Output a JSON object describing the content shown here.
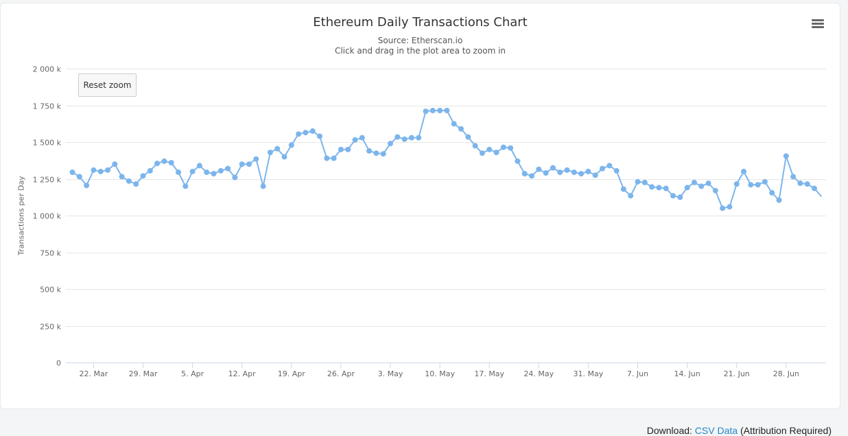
{
  "chart_data": {
    "type": "line",
    "title": "Ethereum Daily Transactions Chart",
    "subtitle": [
      "Source: Etherscan.io",
      "Click and drag in the plot area to zoom in"
    ],
    "ylabel": "Transactions per Day",
    "xlabel": "",
    "ylim": [
      0,
      2000000
    ],
    "yticks": [
      0,
      250000,
      500000,
      750000,
      1000000,
      1250000,
      1500000,
      1750000,
      2000000
    ],
    "ytick_labels": [
      "0",
      "250 k",
      "500 k",
      "750 k",
      "1 000 k",
      "1 250 k",
      "1 500 k",
      "1 750 k",
      "2 000 k"
    ],
    "x_start": "2020-03-19",
    "xtick_labels": [
      "22. Mar",
      "29. Mar",
      "5. Apr",
      "12. Apr",
      "19. Apr",
      "26. Apr",
      "3. May",
      "10. May",
      "17. May",
      "24. May",
      "31. May",
      "7. Jun",
      "14. Jun",
      "21. Jun",
      "28. Jun"
    ],
    "color": "#7cb5ec",
    "grid": true,
    "legend": false,
    "series": [
      {
        "values": [
          1295000,
          1265000,
          1205000,
          1310000,
          1300000,
          1310000,
          1350000,
          1265000,
          1235000,
          1215000,
          1270000,
          1305000,
          1355000,
          1370000,
          1360000,
          1295000,
          1200000,
          1300000,
          1340000,
          1295000,
          1285000,
          1305000,
          1320000,
          1260000,
          1350000,
          1350000,
          1385000,
          1200000,
          1430000,
          1455000,
          1400000,
          1480000,
          1555000,
          1565000,
          1575000,
          1540000,
          1390000,
          1390000,
          1450000,
          1450000,
          1515000,
          1530000,
          1440000,
          1425000,
          1420000,
          1490000,
          1535000,
          1520000,
          1530000,
          1530000,
          1710000,
          1715000,
          1715000,
          1715000,
          1625000,
          1590000,
          1535000,
          1475000,
          1425000,
          1450000,
          1430000,
          1465000,
          1460000,
          1370000,
          1285000,
          1270000,
          1315000,
          1290000,
          1325000,
          1295000,
          1310000,
          1295000,
          1285000,
          1300000,
          1275000,
          1320000,
          1340000,
          1305000,
          1180000,
          1135000,
          1230000,
          1225000,
          1195000,
          1190000,
          1185000,
          1135000,
          1125000,
          1190000,
          1225000,
          1200000,
          1220000,
          1170000,
          1050000,
          1060000,
          1215000,
          1300000,
          1210000,
          1210000,
          1230000,
          1155000,
          1105000,
          1405000,
          1265000,
          1220000,
          1215000,
          1185000,
          1130000
        ]
      }
    ]
  },
  "ui": {
    "reset_zoom_label": "Reset zoom",
    "menu_icon": "hamburger-menu-icon",
    "footer": {
      "prefix": "Download:",
      "link": "CSV Data",
      "suffix": "(Attribution Required)"
    }
  }
}
